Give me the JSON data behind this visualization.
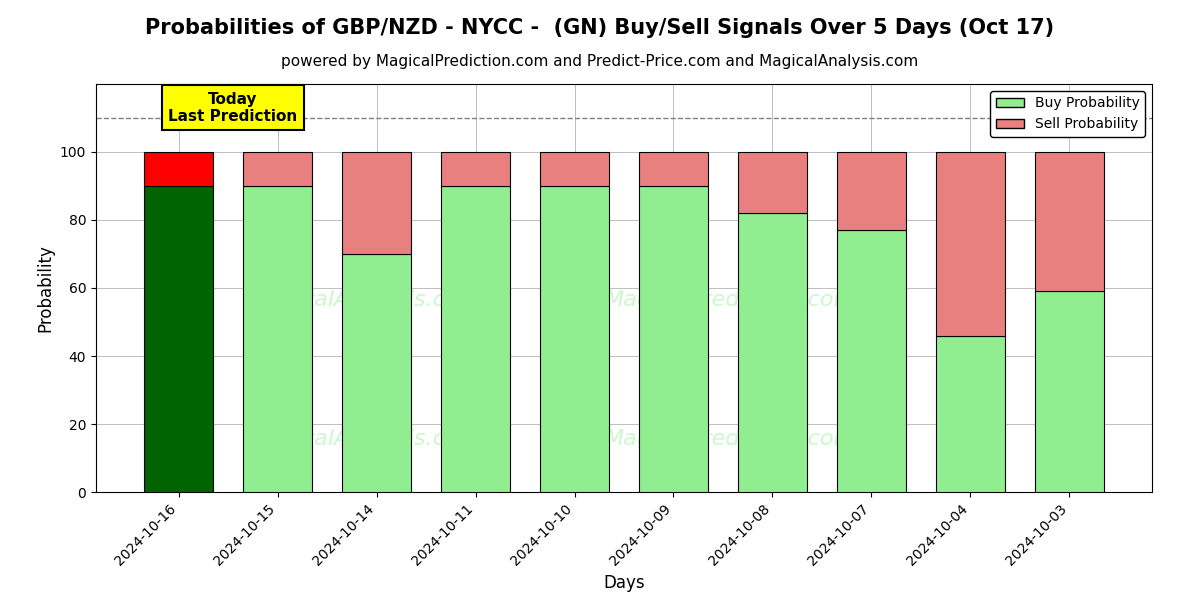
{
  "title": "Probabilities of GBP/NZD - NYCC -  (GN) Buy/Sell Signals Over 5 Days (Oct 17)",
  "subtitle": "powered by MagicalPrediction.com and Predict-Price.com and MagicalAnalysis.com",
  "xlabel": "Days",
  "ylabel": "Probability",
  "dates": [
    "2024-10-16",
    "2024-10-15",
    "2024-10-14",
    "2024-10-11",
    "2024-10-10",
    "2024-10-09",
    "2024-10-08",
    "2024-10-07",
    "2024-10-04",
    "2024-10-03"
  ],
  "buy_values": [
    90,
    90,
    70,
    90,
    90,
    90,
    82,
    77,
    46,
    59
  ],
  "sell_values": [
    10,
    10,
    30,
    10,
    10,
    10,
    18,
    23,
    54,
    41
  ],
  "today_bar_index": 0,
  "buy_color_today": "#006400",
  "sell_color_today": "#ff0000",
  "buy_color_normal": "#90EE90",
  "sell_color_normal": "#E88080",
  "bar_edge_color": "#000000",
  "ylim": [
    0,
    120
  ],
  "yticks": [
    0,
    20,
    40,
    60,
    80,
    100
  ],
  "dashed_line_y": 110,
  "today_annotation_text": "Today\nLast Prediction",
  "today_annotation_bg": "#ffff00",
  "legend_buy_label": "Buy Probability",
  "legend_sell_label": "Sell Probability",
  "title_fontsize": 15,
  "subtitle_fontsize": 11,
  "axis_label_fontsize": 12,
  "tick_fontsize": 10,
  "background_color": "#ffffff"
}
